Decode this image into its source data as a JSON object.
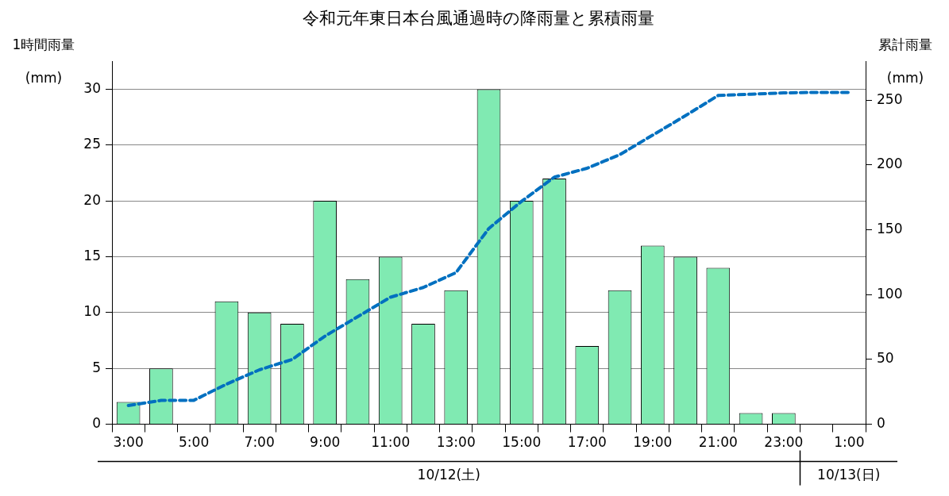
{
  "chart_data": {
    "type": "bar",
    "title": "令和元年東日本台風通過時の降雨量と累積雨量",
    "ylabel": "1時間雨量\n(mm)",
    "y2label": "累計雨量\n(mm)",
    "categories": [
      "3:00",
      null,
      "5:00",
      null,
      "7:00",
      null,
      "9:00",
      null,
      "11:00",
      null,
      "13:00",
      null,
      "15:00",
      null,
      "17:00",
      null,
      "19:00",
      null,
      "21:00",
      null,
      "23:00",
      null,
      "1:00"
    ],
    "series": [
      {
        "color": "#80eab2",
        "values": [
          2,
          5,
          0,
          11,
          10,
          9,
          20,
          13,
          15,
          9,
          12,
          30,
          20,
          22,
          7,
          12,
          16,
          15,
          14,
          1,
          1,
          0,
          0
        ]
      },
      {
        "type": "line",
        "axis": "y2",
        "color": "#0070c0",
        "line_style": "dashed",
        "marker": "none",
        "values": [
          14.5,
          18.4,
          18.5,
          31,
          42,
          50,
          68,
          83,
          98,
          105.5,
          117,
          151,
          172,
          190.6,
          197.5,
          208,
          223,
          238,
          253.6,
          254.6,
          255.6,
          256,
          256
        ]
      }
    ],
    "ylim": [
      0,
      32.5
    ],
    "yticks": [
      0,
      5,
      10,
      15,
      20,
      25,
      30
    ],
    "y2lim": [
      0,
      280
    ],
    "y2ticks": [
      0,
      50,
      100,
      150,
      200,
      250
    ],
    "grid": "y",
    "legend": false,
    "annotations": [
      "10/12(土)",
      "10/13(日)"
    ]
  }
}
